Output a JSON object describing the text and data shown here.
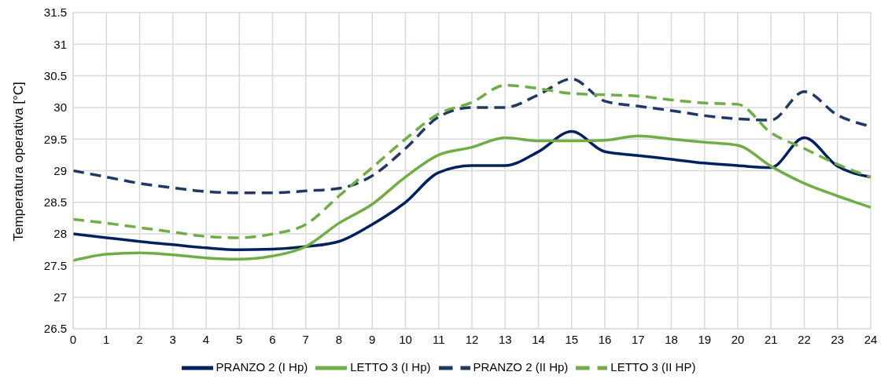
{
  "chart_data": {
    "type": "line",
    "ylabel": "Temperatura operativa [°C]",
    "x": [
      0,
      1,
      2,
      3,
      4,
      5,
      6,
      7,
      8,
      9,
      10,
      11,
      12,
      13,
      14,
      15,
      16,
      17,
      18,
      19,
      20,
      21,
      22,
      23,
      24
    ],
    "series": [
      {
        "name": "PRANZO 2  (I Hp)",
        "color": "#002060",
        "line_style": "solid",
        "values": [
          28.0,
          27.94,
          27.88,
          27.83,
          27.78,
          27.75,
          27.76,
          27.8,
          27.88,
          28.15,
          28.5,
          28.97,
          29.08,
          29.08,
          29.3,
          29.62,
          29.3,
          29.24,
          29.18,
          29.12,
          29.08,
          29.05,
          29.52,
          29.07,
          28.9
        ]
      },
      {
        "name": "LETTO 3 (I Hp)",
        "color": "#70ad47",
        "line_style": "solid",
        "values": [
          27.58,
          27.68,
          27.7,
          27.67,
          27.62,
          27.6,
          27.65,
          27.8,
          28.17,
          28.47,
          28.9,
          29.25,
          29.37,
          29.52,
          29.47,
          29.47,
          29.48,
          29.55,
          29.5,
          29.45,
          29.4,
          29.07,
          28.8,
          28.6,
          28.42
        ]
      },
      {
        "name": "PRANZO 2 (II Hp)",
        "color": "#203864",
        "line_style": "dashed",
        "values": [
          29.0,
          28.9,
          28.8,
          28.73,
          28.67,
          28.65,
          28.65,
          28.68,
          28.72,
          28.92,
          29.35,
          29.85,
          30.0,
          30.0,
          30.2,
          30.45,
          30.1,
          30.02,
          29.95,
          29.87,
          29.82,
          29.8,
          30.25,
          29.88,
          29.7
        ]
      },
      {
        "name": "LETTO 3 (II HP)",
        "color": "#70ad47",
        "line_style": "dashed",
        "values": [
          28.23,
          28.17,
          28.1,
          28.03,
          27.96,
          27.94,
          28.0,
          28.15,
          28.6,
          29.05,
          29.5,
          29.9,
          30.08,
          30.35,
          30.3,
          30.22,
          30.2,
          30.18,
          30.12,
          30.07,
          30.05,
          29.6,
          29.35,
          29.1,
          28.9
        ]
      }
    ],
    "xlim": [
      0,
      24
    ],
    "xticks": [
      0,
      1,
      2,
      3,
      4,
      5,
      6,
      7,
      8,
      9,
      10,
      11,
      12,
      13,
      14,
      15,
      16,
      17,
      18,
      19,
      20,
      21,
      22,
      23,
      24
    ],
    "ylim": [
      26.5,
      31.5
    ],
    "yticks": [
      26.5,
      27,
      27.5,
      28,
      28.5,
      29,
      29.5,
      30,
      30.5,
      31,
      31.5
    ],
    "grid": true,
    "legend": "bottom",
    "marker": "none"
  }
}
